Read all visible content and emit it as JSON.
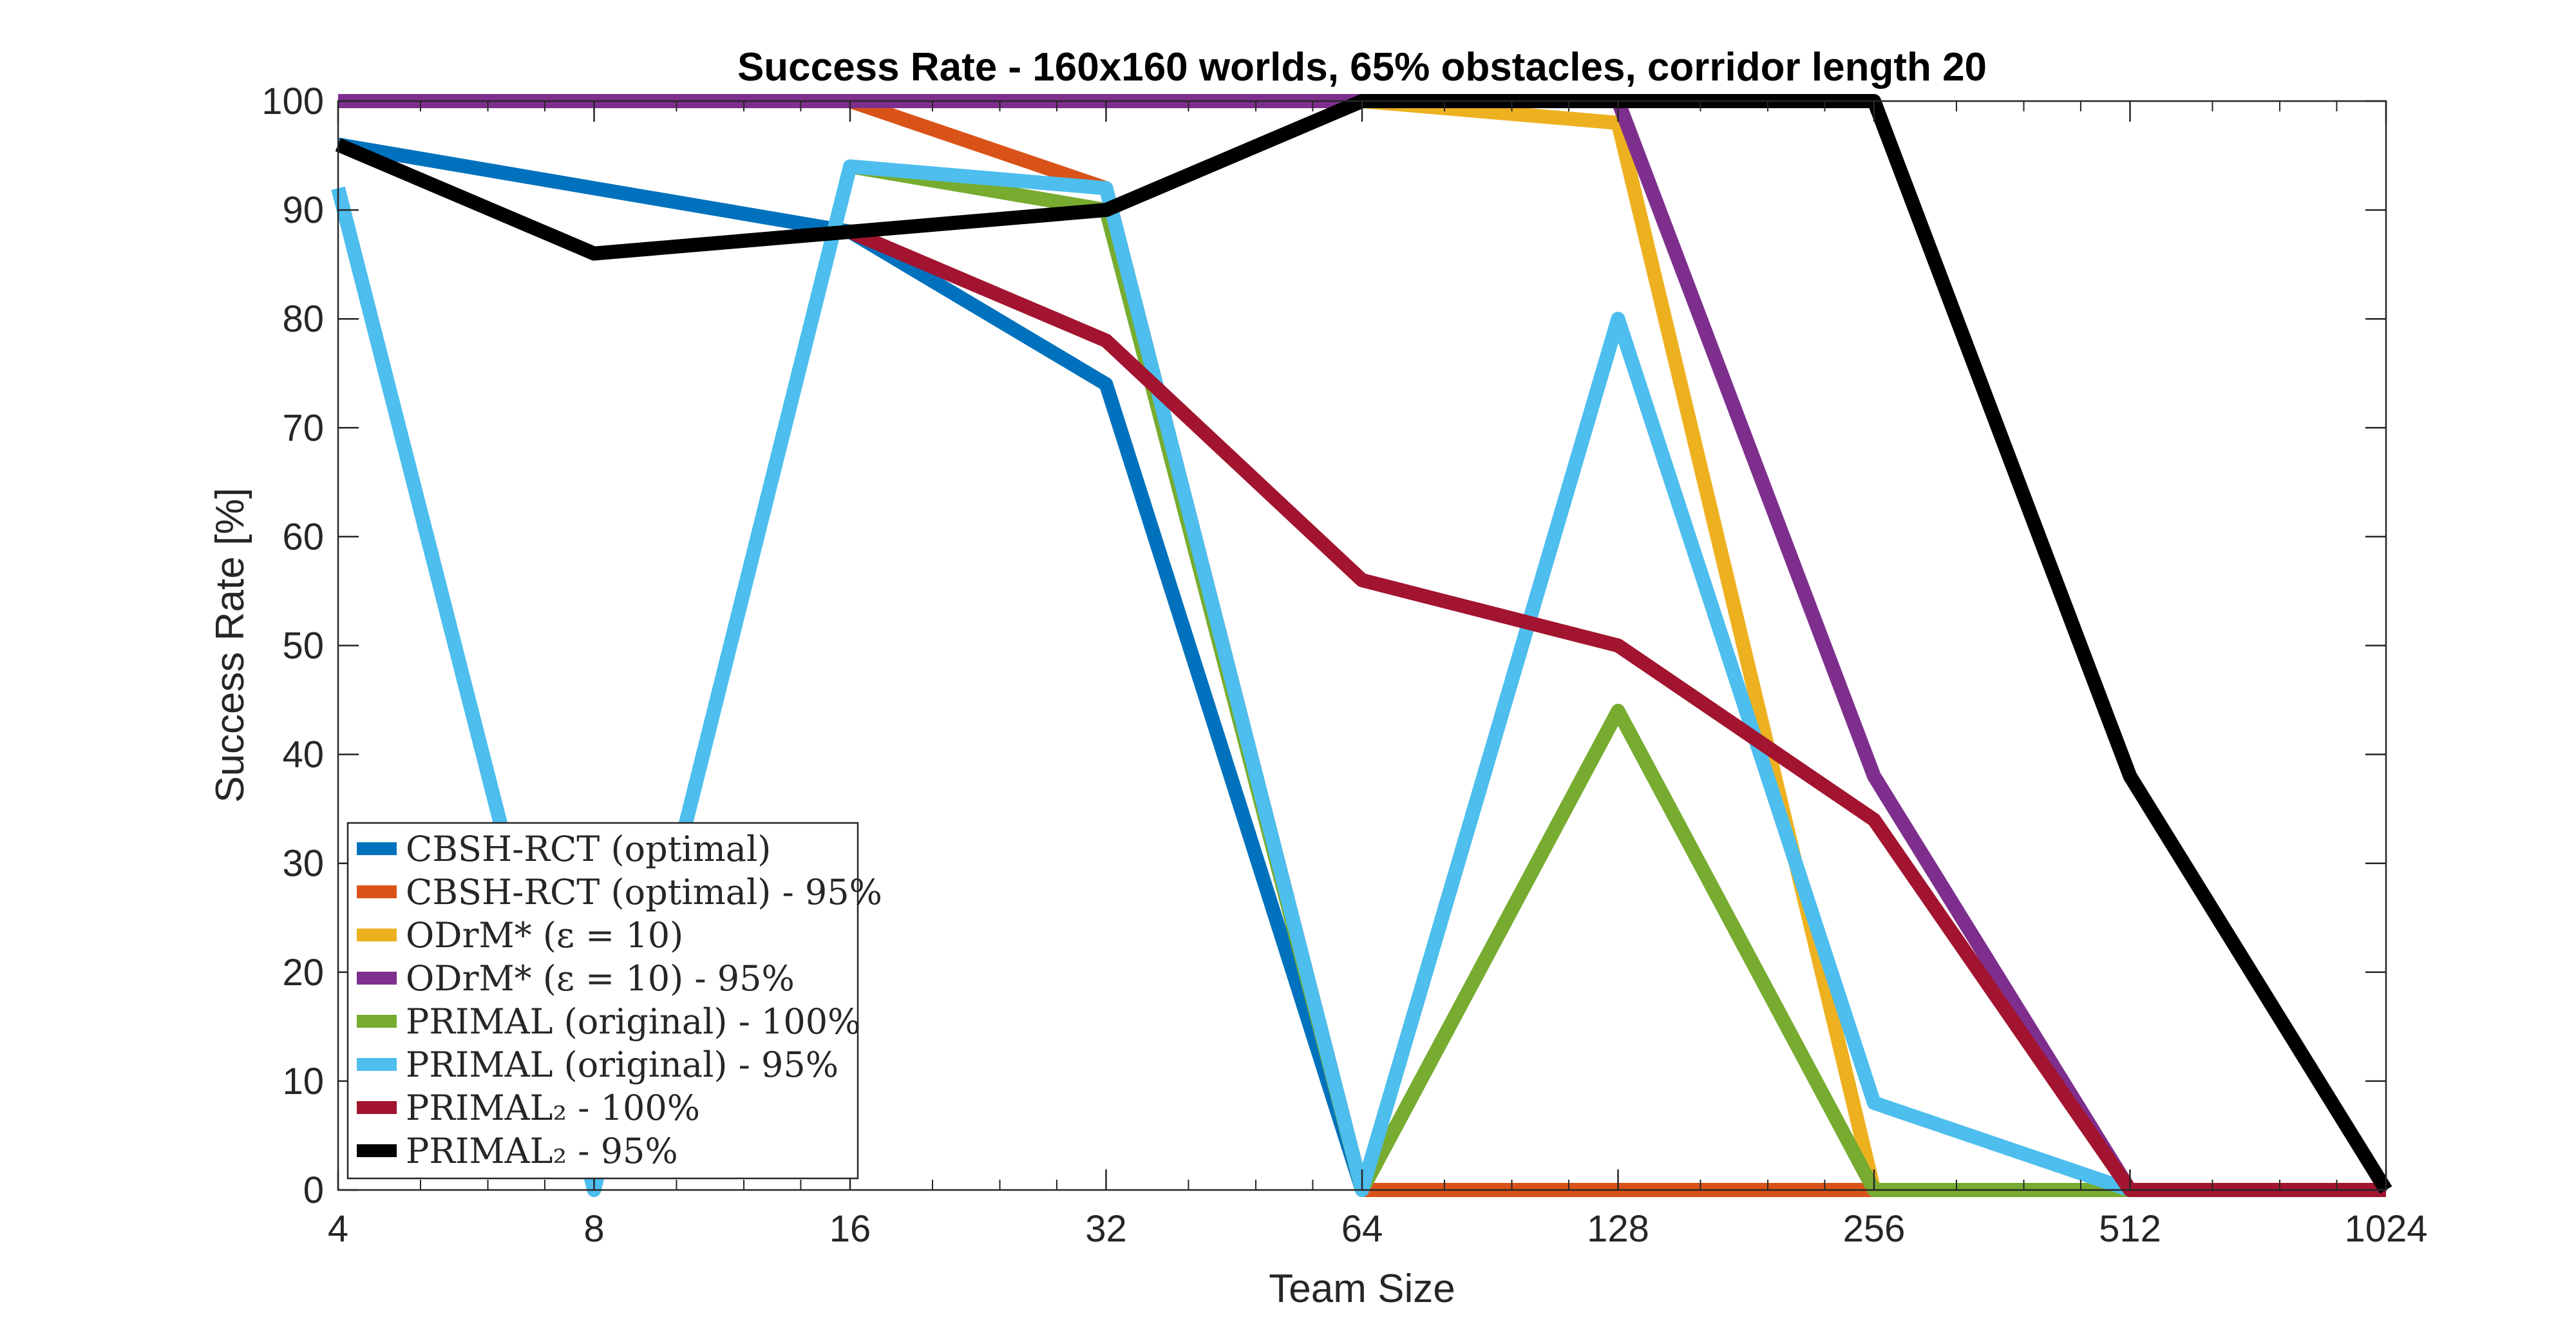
{
  "chart_data": {
    "type": "line",
    "title": "Success Rate - 160x160 worlds, 65% obstacles, corridor length 20",
    "xlabel": "Team Size",
    "ylabel": "Success Rate [%]",
    "x_scale": "log2",
    "x": [
      4,
      8,
      16,
      32,
      64,
      128,
      256,
      512,
      1024
    ],
    "x_tick_labels": [
      "4",
      "8",
      "16",
      "32",
      "64",
      "128",
      "256",
      "512",
      "1024"
    ],
    "ylim": [
      0,
      100
    ],
    "y_ticks": [
      0,
      10,
      20,
      30,
      40,
      50,
      60,
      70,
      80,
      90,
      100
    ],
    "grid": false,
    "legend_position": "bottom-left",
    "series": [
      {
        "name": "CBSH-RCT (optimal)",
        "color": "#0072BD",
        "x": [
          4,
          8,
          16,
          32,
          64
        ],
        "values": [
          96,
          92,
          88,
          74,
          0
        ]
      },
      {
        "name": "CBSH-RCT (optimal) - 95%",
        "color": "#D95319",
        "x": [
          4,
          8,
          16,
          32,
          64,
          128,
          256,
          512,
          1024
        ],
        "values": [
          100,
          100,
          100,
          92,
          0,
          0,
          0,
          0,
          0
        ]
      },
      {
        "name": "ODrM* (ε = 10)",
        "color": "#EDB120",
        "x": [
          4,
          8,
          16,
          32,
          64,
          128,
          256
        ],
        "values": [
          100,
          100,
          100,
          100,
          100,
          98,
          0
        ]
      },
      {
        "name": "ODrM* (ε = 10) - 95%",
        "color": "#7E2F8E",
        "x": [
          4,
          8,
          16,
          32,
          64,
          128,
          256,
          512
        ],
        "values": [
          100,
          100,
          100,
          100,
          100,
          100,
          38,
          0
        ]
      },
      {
        "name": "PRIMAL (original) - 100%",
        "color": "#77AC30",
        "x": [
          16,
          32,
          64,
          128,
          256,
          512
        ],
        "values": [
          94,
          90,
          0,
          44,
          0,
          0
        ]
      },
      {
        "name": "PRIMAL (original) - 95%",
        "color": "#4DBEEE",
        "x": [
          4,
          8,
          16,
          32,
          64,
          128,
          256,
          512
        ],
        "values": [
          92,
          0,
          94,
          92,
          0,
          80,
          8,
          0
        ]
      },
      {
        "name": "PRIMAL₂ - 100%",
        "color": "#A2142F",
        "x": [
          16,
          32,
          64,
          128,
          256,
          512,
          1024
        ],
        "values": [
          88,
          78,
          56,
          50,
          34,
          0,
          0
        ]
      },
      {
        "name": "PRIMAL₂ - 95%",
        "color": "#000000",
        "x": [
          4,
          8,
          16,
          32,
          64,
          128,
          256,
          512,
          1024
        ],
        "values": [
          96,
          86,
          88,
          90,
          100,
          100,
          100,
          38,
          0
        ]
      }
    ]
  }
}
